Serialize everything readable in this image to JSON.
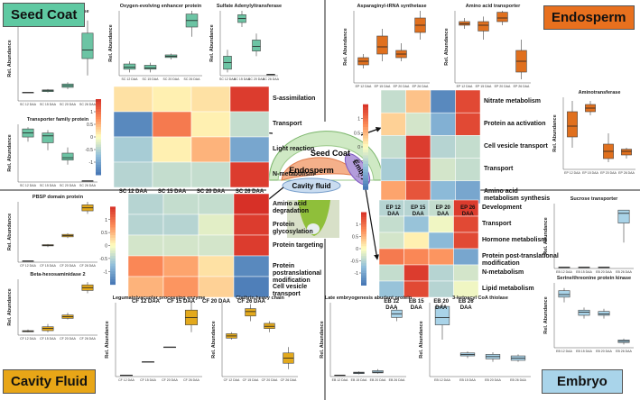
{
  "sections": [
    {
      "label": "Seed Coat"
    },
    {
      "label": "Endosperm"
    },
    {
      "label": "Cavity Fluid"
    },
    {
      "label": "Embryo"
    }
  ],
  "center": {
    "labels": [
      "Seed Coat",
      "Endosperm",
      "Embryo",
      "Cavity fluid"
    ]
  },
  "chart_data": [
    {
      "type": "heatmap",
      "columns": [
        "SC 12 DAA",
        "SC 15 DAA",
        "SC 20 DAA",
        "SC 26 DAA"
      ],
      "rows": [
        "S-assimilation",
        "Transport",
        "Light reaction",
        "N-metabolism"
      ],
      "values": [
        [
          0.2,
          0.1,
          0.2,
          1.4
        ],
        [
          -1.3,
          0.9,
          0.1,
          -0.4
        ],
        [
          -0.6,
          0.1,
          0.5,
          -1.0
        ],
        [
          -0.5,
          -0.4,
          -0.4,
          1.4
        ]
      ],
      "zlim": [
        -1.5,
        1.5
      ],
      "zticks": [
        1,
        0.5,
        0,
        -0.5,
        -1
      ]
    },
    {
      "type": "heatmap",
      "columns": [
        "EP 12 DAA",
        "EP 15 DAA",
        "EP 20 DAA",
        "EP 26 DAA"
      ],
      "rows": [
        "Nitrate metabolism",
        "Protein aa activation",
        "Cell vesicle transport",
        "Transport",
        "Amino acid metabolism synthesis"
      ],
      "values": [
        [
          -0.4,
          0.4,
          -1.3,
          1.3
        ],
        [
          0.3,
          -0.3,
          -0.9,
          1.3
        ],
        [
          -0.4,
          1.4,
          -0.5,
          -0.4
        ],
        [
          -0.6,
          1.4,
          -0.3,
          -0.4
        ],
        [
          0.6,
          1.2,
          -0.8,
          -1.0
        ]
      ],
      "zlim": [
        -1.5,
        1.5
      ],
      "zticks": [
        1,
        0.5,
        0,
        -0.5,
        -1
      ]
    },
    {
      "type": "heatmap",
      "columns": [
        "CF 12 DAA",
        "CF 15 DAA",
        "CF 20 DAA",
        "CF 26 DAA"
      ],
      "rows": [
        "Amino acid degradation",
        "Protein glycosylation",
        "Protein targeting",
        "Protein postranslational modification",
        "Cell vesicle transport"
      ],
      "values": [
        [
          -0.5,
          -0.4,
          -0.4,
          1.5
        ],
        [
          -0.5,
          -0.5,
          -0.2,
          1.4
        ],
        [
          -0.3,
          -0.3,
          -0.3,
          1.4
        ],
        [
          0.8,
          0.6,
          0.2,
          -1.3
        ],
        [
          0.5,
          0.7,
          0.3,
          -1.4
        ]
      ],
      "zlim": [
        -1.5,
        1.5
      ],
      "zticks": [
        1,
        0.5,
        0,
        -0.5,
        -1
      ]
    },
    {
      "type": "heatmap",
      "columns": [
        "EB 12 DAA",
        "EB 15 DAA",
        "EB 20 DAA",
        "EB 26 DAA"
      ],
      "rows": [
        "Development",
        "Transport",
        "Hormone metabolism",
        "Protein post-translational modification",
        "N-metabolism",
        "Lipid metabolism"
      ],
      "values": [
        [
          -0.5,
          -0.5,
          -0.4,
          1.4
        ],
        [
          -0.4,
          -0.7,
          -0.1,
          1.3
        ],
        [
          -0.3,
          0.1,
          -0.8,
          1.3
        ],
        [
          0.9,
          0.8,
          0.7,
          -1.0
        ],
        [
          -0.4,
          1.4,
          -0.5,
          -0.3
        ],
        [
          -0.7,
          1.3,
          -0.5,
          -0.1
        ]
      ],
      "zlim": [
        -1.5,
        1.5
      ],
      "zticks": [
        1,
        0.5,
        0,
        -0.5,
        -1
      ]
    },
    {
      "type": "box",
      "title": "Glutamate dehydrogenase",
      "ylabel": "Rel. Abundance",
      "color": "#6cc4a4",
      "ylim": [
        0,
        1
      ],
      "categories": [
        "SC 12 DAA",
        "SC 15 DAA",
        "SC 20 DAA",
        "SC 26 DAA"
      ],
      "values": [
        [
          0.1,
          0.1,
          0.1,
          0.1,
          0.1
        ],
        [
          0.1,
          0.11,
          0.12,
          0.13,
          0.14
        ],
        [
          0.14,
          0.16,
          0.18,
          0.2,
          0.22
        ],
        [
          0.3,
          0.5,
          0.6,
          0.8,
          0.95
        ]
      ]
    },
    {
      "type": "box",
      "title": "Oxygen-evolving enhancer protein",
      "ylabel": "Rel. Abundance",
      "color": "#6cc4a4",
      "ylim": [
        0,
        1
      ],
      "categories": [
        "SC 12 DAA",
        "SC 15 DAA",
        "SC 20 DAA",
        "SC 26 DAA"
      ],
      "values": [
        [
          0.05,
          0.1,
          0.13,
          0.18,
          0.22
        ],
        [
          0.05,
          0.1,
          0.12,
          0.16,
          0.2
        ],
        [
          0.25,
          0.28,
          0.3,
          0.32,
          0.34
        ],
        [
          0.6,
          0.75,
          0.85,
          0.95,
          1
        ]
      ]
    },
    {
      "type": "box",
      "title": "Sulfate Adenylyltransferase",
      "ylabel": "Rel. Abundance",
      "color": "#6cc4a4",
      "ylim": [
        0,
        1
      ],
      "categories": [
        "SC 12 DAA",
        "SC 15 DAA",
        "SC 20 DAA",
        "SC 26 DAA"
      ],
      "values": [
        [
          0.05,
          0.1,
          0.2,
          0.3,
          0.4
        ],
        [
          0.75,
          0.82,
          0.88,
          0.94,
          1
        ],
        [
          0.3,
          0.38,
          0.45,
          0.55,
          0.65
        ],
        [
          0.02,
          0.02,
          0.02,
          0.02,
          0.02
        ]
      ]
    },
    {
      "type": "box",
      "title": "Transporter family protein",
      "ylabel": "Rel. Abundance",
      "color": "#6cc4a4",
      "ylim": [
        0,
        1
      ],
      "categories": [
        "SC 12 DAA",
        "SC 15 DAA",
        "SC 20 DAA",
        "SC 26 DAA"
      ],
      "values": [
        [
          0.7,
          0.78,
          0.85,
          0.92,
          0.95
        ],
        [
          0.55,
          0.68,
          0.8,
          0.85,
          0.9
        ],
        [
          0.3,
          0.38,
          0.42,
          0.5,
          0.6
        ],
        [
          0.02,
          0.02,
          0.02,
          0.02,
          0.02
        ]
      ]
    },
    {
      "type": "box",
      "title": "Asparaginyl-tRNA synthetase",
      "ylabel": "Rel. Abundance",
      "color": "#e0701e",
      "ylim": [
        0,
        1
      ],
      "categories": [
        "EP 12 DAA",
        "EP 15 DAA",
        "EP 20 DAA",
        "EP 26 DAA"
      ],
      "values": [
        [
          0.2,
          0.25,
          0.3,
          0.35,
          0.4
        ],
        [
          0.3,
          0.4,
          0.5,
          0.65,
          0.75
        ],
        [
          0.3,
          0.35,
          0.4,
          0.45,
          0.55
        ],
        [
          0.6,
          0.7,
          0.8,
          0.9,
          1
        ]
      ]
    },
    {
      "type": "box",
      "title": "Amino acid transporter",
      "ylabel": "Rel. Abundance",
      "color": "#e0701e",
      "ylim": [
        0,
        1
      ],
      "categories": [
        "EP 12 DAA",
        "EP 15 DAA",
        "EP 20 DAA",
        "EP 26 DAA"
      ],
      "values": [
        [
          0.75,
          0.8,
          0.82,
          0.85,
          0.9
        ],
        [
          0.6,
          0.72,
          0.8,
          0.85,
          0.92
        ],
        [
          0.8,
          0.85,
          0.9,
          0.98,
          1
        ],
        [
          0.05,
          0.15,
          0.3,
          0.45,
          0.6
        ]
      ]
    },
    {
      "type": "box",
      "title": "Aminotransferase",
      "ylabel": "Rel. Abundance",
      "color": "#e0701e",
      "ylim": [
        0,
        1
      ],
      "categories": [
        "EP 12 DAA",
        "EP 15 DAA",
        "EP 20 DAA",
        "EP 26 DAA"
      ],
      "values": [
        [
          0.3,
          0.45,
          0.6,
          0.8,
          0.95
        ],
        [
          0.75,
          0.8,
          0.85,
          0.9,
          0.95
        ],
        [
          0.1,
          0.15,
          0.25,
          0.35,
          0.5
        ],
        [
          0.15,
          0.2,
          0.25,
          0.28,
          0.3
        ]
      ]
    },
    {
      "type": "box",
      "title": "PBSP domain protein",
      "ylabel": "Rel. Abundance",
      "color": "#e3a91c",
      "ylim": [
        0,
        1
      ],
      "categories": [
        "CF 12 DAA",
        "CF 15 DAA",
        "CF 20 DAA",
        "CF 26 DAA"
      ],
      "values": [
        [
          0.02,
          0.02,
          0.02,
          0.02,
          0.02
        ],
        [
          0.25,
          0.27,
          0.28,
          0.29,
          0.3
        ],
        [
          0.4,
          0.42,
          0.44,
          0.46,
          0.48
        ],
        [
          0.8,
          0.85,
          0.9,
          0.95,
          1
        ]
      ]
    },
    {
      "type": "box",
      "title": "Beta-hexosaminidase 2",
      "ylabel": "Rel. Abundance",
      "color": "#e3a91c",
      "ylim": [
        0,
        1
      ],
      "categories": [
        "CF 12 DAA",
        "CF 15 DAA",
        "CF 20 DAA",
        "CF 26 DAA"
      ],
      "values": [
        [
          0.05,
          0.06,
          0.07,
          0.08,
          0.1
        ],
        [
          0.05,
          0.08,
          0.12,
          0.15,
          0.2
        ],
        [
          0.28,
          0.3,
          0.33,
          0.36,
          0.4
        ],
        [
          0.75,
          0.8,
          0.85,
          0.9,
          0.95
        ]
      ]
    },
    {
      "type": "box",
      "title": "Legumain/vacuolar processing enzyme",
      "ylabel": "Rel. Abundance",
      "color": "#e3a91c",
      "ylim": [
        0,
        1
      ],
      "categories": [
        "CF 12 DAA",
        "CF 15 DAA",
        "CF 20 DAA",
        "CF 26 DAA"
      ],
      "values": [
        [
          0.02,
          0.02,
          0.02,
          0.02,
          0.02
        ],
        [
          0.2,
          0.2,
          0.2,
          0.2,
          0.2
        ],
        [
          0.4,
          0.4,
          0.4,
          0.4,
          0.4
        ],
        [
          0.6,
          0.7,
          0.8,
          0.9,
          1
        ]
      ]
    },
    {
      "type": "box",
      "title": "Clathrin heavy chain",
      "ylabel": "Rel. Abundance",
      "color": "#e3a91c",
      "ylim": [
        0,
        1
      ],
      "categories": [
        "CF 12 DAA",
        "CF 15 DAA",
        "CF 20 DAA",
        "CF 26 DAA"
      ],
      "values": [
        [
          0.5,
          0.52,
          0.55,
          0.58,
          0.6
        ],
        [
          0.75,
          0.82,
          0.88,
          0.92,
          0.98
        ],
        [
          0.6,
          0.65,
          0.68,
          0.72,
          0.75
        ],
        [
          0.1,
          0.18,
          0.25,
          0.32,
          0.4
        ]
      ]
    },
    {
      "type": "box",
      "title": "Sucrose transporter",
      "ylabel": "Rel. Abundance",
      "color": "#a9d3e8",
      "ylim": [
        0,
        1
      ],
      "categories": [
        "EB 12 DAA",
        "EB 15 DAA",
        "EB 20 DAA",
        "EB 26 DAA"
      ],
      "values": [
        [
          0.02,
          0.02,
          0.02,
          0.02,
          0.02
        ],
        [
          0.02,
          0.02,
          0.02,
          0.02,
          0.02
        ],
        [
          0.02,
          0.02,
          0.02,
          0.02,
          0.02
        ],
        [
          0.4,
          0.7,
          0.85,
          0.9,
          0.9
        ]
      ]
    },
    {
      "type": "box",
      "title": "Late embryogenesis abudant protein",
      "ylabel": "Rel. Abundance",
      "color": "#a9d3e8",
      "ylim": [
        0,
        1
      ],
      "categories": [
        "EB 12 DAA",
        "EB 15 DAA",
        "EB 20 DAA",
        "EB 26 DAA"
      ],
      "values": [
        [
          0.02,
          0.02,
          0.02,
          0.02,
          0.02
        ],
        [
          0.03,
          0.04,
          0.05,
          0.06,
          0.07
        ],
        [
          0.04,
          0.05,
          0.06,
          0.08,
          0.1
        ],
        [
          0.75,
          0.8,
          0.85,
          0.9,
          0.95
        ]
      ]
    },
    {
      "type": "box",
      "title": "3-ketoacyl CoA thiolase",
      "ylabel": "Rel. Abundance",
      "color": "#a9d3e8",
      "ylim": [
        0,
        1
      ],
      "categories": [
        "EB 12 DAA",
        "EB 15 DAA",
        "EB 20 DAA",
        "EB 26 DAA"
      ],
      "values": [
        [
          0.5,
          0.7,
          0.8,
          0.95,
          1
        ],
        [
          0.25,
          0.28,
          0.3,
          0.32,
          0.34
        ],
        [
          0.2,
          0.24,
          0.27,
          0.3,
          0.33
        ],
        [
          0.2,
          0.22,
          0.25,
          0.28,
          0.3
        ]
      ]
    },
    {
      "type": "box",
      "title": "Serine/threonine protein kinase",
      "ylabel": "Rel. Abundance",
      "color": "#a9d3e8",
      "ylim": [
        0,
        1
      ],
      "categories": [
        "EB 12 DAA",
        "EB 15 DAA",
        "EB 20 DAA",
        "EB 26 DAA"
      ],
      "values": [
        [
          0.7,
          0.78,
          0.82,
          0.88,
          0.92
        ],
        [
          0.45,
          0.5,
          0.55,
          0.58,
          0.62
        ],
        [
          0.45,
          0.5,
          0.52,
          0.56,
          0.6
        ],
        [
          0.05,
          0.08,
          0.1,
          0.12,
          0.14
        ]
      ]
    }
  ]
}
